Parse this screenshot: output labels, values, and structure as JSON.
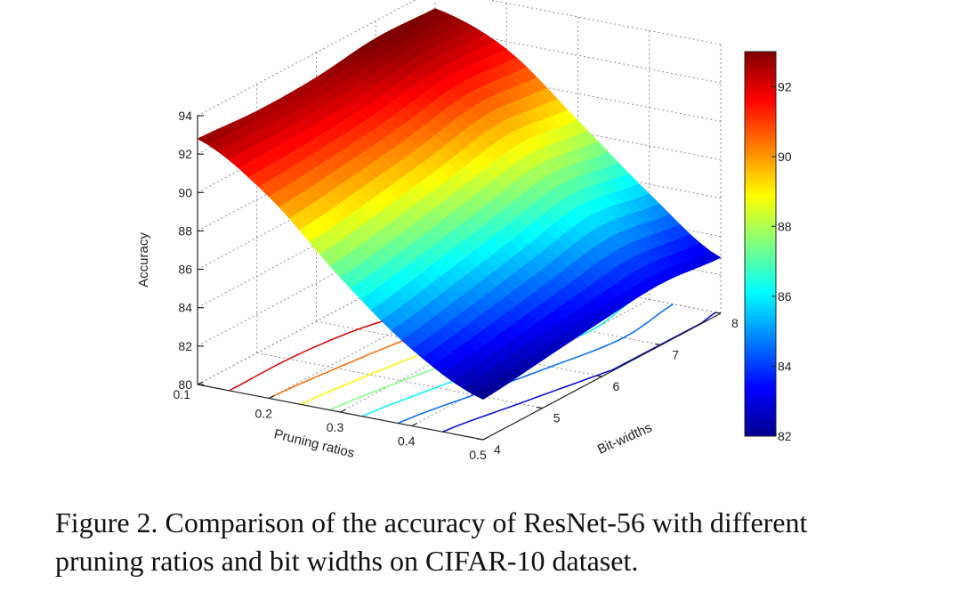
{
  "chart_data": {
    "type": "surface",
    "xlabel": "Pruning ratios",
    "ylabel": "Bit-widths",
    "zlabel": "Accuracy",
    "x_ticks": [
      "0.1",
      "0.2",
      "0.3",
      "0.4",
      "0.5"
    ],
    "y_ticks": [
      "4",
      "5",
      "6",
      "7",
      "8"
    ],
    "z_ticks": [
      "80",
      "82",
      "84",
      "86",
      "88",
      "90",
      "92",
      "94"
    ],
    "xlim": [
      0.1,
      0.5
    ],
    "ylim": [
      4,
      8
    ],
    "zlim": [
      80,
      94
    ],
    "grid": true,
    "colormap": "jet",
    "colorbar": {
      "range": [
        82,
        93
      ],
      "ticks": [
        "82",
        "84",
        "86",
        "88",
        "90",
        "92"
      ]
    },
    "contours": true,
    "x": [
      0.1,
      0.2,
      0.3,
      0.4,
      0.5
    ],
    "y": [
      4,
      5,
      6,
      7,
      8
    ],
    "z": [
      [
        92.8,
        92.6,
        92.7,
        93.1,
        93.0
      ],
      [
        90.5,
        90.8,
        91.2,
        91.8,
        91.6
      ],
      [
        87.0,
        87.6,
        88.3,
        89.0,
        88.6
      ],
      [
        84.0,
        84.6,
        85.3,
        86.0,
        85.5
      ],
      [
        82.1,
        82.5,
        82.9,
        83.2,
        82.9
      ]
    ]
  },
  "caption": {
    "line1": "Figure 2. Comparison of the accuracy of ResNet-56 with different",
    "line2": "pruning ratios and bit widths on CIFAR-10 dataset."
  },
  "colors": {
    "grid": "#8a8a8a",
    "axis": "#222222"
  }
}
